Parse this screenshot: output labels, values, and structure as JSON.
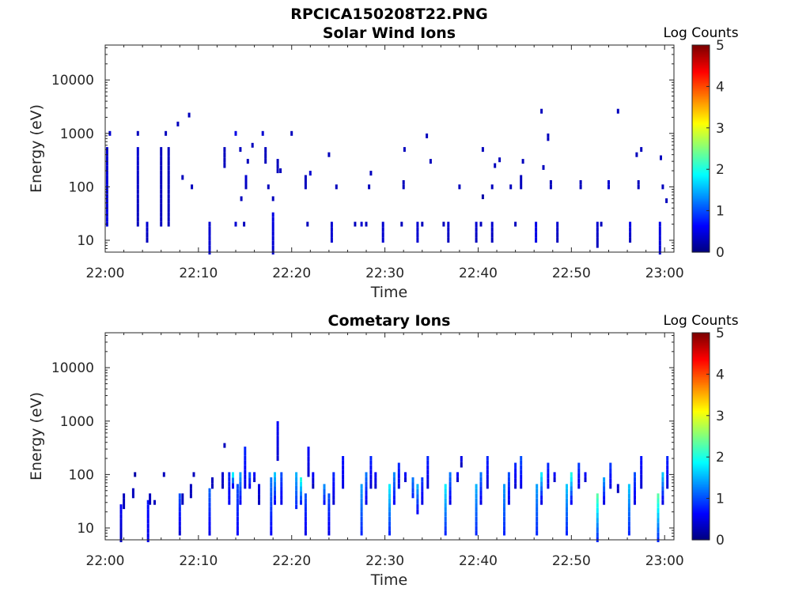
{
  "figure": {
    "filename": "RPCICA150208T22.PNG"
  },
  "chart_data": [
    {
      "type": "heatmap",
      "title": "Solar Wind Ions",
      "xlabel": "Time",
      "ylabel": "Energy (eV)",
      "xticks": [
        "22:00",
        "22:10",
        "22:20",
        "22:30",
        "22:40",
        "22:50",
        "23:00"
      ],
      "xlim_minutes": [
        0,
        61
      ],
      "yscale": "log",
      "ylim": [
        6,
        45000
      ],
      "yticks": [
        10,
        100,
        1000,
        10000
      ],
      "ytick_labels": [
        "10",
        "100",
        "1000",
        "10000"
      ],
      "grid": false,
      "colorbar": {
        "label": "Log Counts",
        "range": [
          0,
          5
        ],
        "ticks": [
          "0",
          "1",
          "2",
          "3",
          "4",
          "5"
        ],
        "colormap": "jet"
      },
      "cells": [
        [
          0.2,
          20,
          0.5,
          500,
          0.4
        ],
        [
          0.5,
          1000,
          0.4,
          1000,
          0.3
        ],
        [
          3.5,
          20,
          0.3,
          500,
          0.4
        ],
        [
          3.5,
          1000,
          0.3,
          1000,
          0.3
        ],
        [
          4.5,
          10,
          0.3,
          20,
          0.4
        ],
        [
          6.0,
          20,
          0.3,
          500,
          0.3
        ],
        [
          6.5,
          1000,
          0.3,
          1000,
          0.3
        ],
        [
          6.8,
          20,
          0.3,
          500,
          0.3
        ],
        [
          7.8,
          1500,
          0.3,
          1500,
          0.2
        ],
        [
          8.3,
          150,
          0.3,
          150,
          0.2
        ],
        [
          9.0,
          2200,
          0.3,
          2200,
          0.2
        ],
        [
          9.3,
          100,
          0.3,
          100,
          0.2
        ],
        [
          11.2,
          6,
          0.4,
          20,
          0.4
        ],
        [
          12.8,
          250,
          0.3,
          500,
          0.3
        ],
        [
          14.0,
          1000,
          0.5,
          1000,
          0.3
        ],
        [
          14.0,
          20,
          0.4,
          20,
          0.4
        ],
        [
          14.5,
          500,
          0.3,
          500,
          0.3
        ],
        [
          14.6,
          60,
          0.3,
          60,
          0.3
        ],
        [
          14.9,
          20,
          0.3,
          20,
          0.3
        ],
        [
          15.1,
          100,
          0.3,
          150,
          0.4
        ],
        [
          15.3,
          300,
          0.3,
          300,
          0.3
        ],
        [
          15.8,
          600,
          0.3,
          600,
          0.3
        ],
        [
          16.9,
          1000,
          0.4,
          1000,
          0.3
        ],
        [
          17.2,
          300,
          0.3,
          500,
          0.3
        ],
        [
          17.5,
          100,
          0.3,
          100,
          0.3
        ],
        [
          18.0,
          6,
          0.4,
          30,
          0.5
        ],
        [
          18.0,
          60,
          0.3,
          60,
          0.2
        ],
        [
          18.5,
          200,
          0.3,
          300,
          0.3
        ],
        [
          18.8,
          200,
          0.3,
          200,
          0.3
        ],
        [
          20.0,
          1000,
          0.3,
          1000,
          0.3
        ],
        [
          21.5,
          100,
          0.3,
          150,
          0.3
        ],
        [
          21.7,
          20,
          0.3,
          20,
          0.4
        ],
        [
          22.0,
          180,
          0.4,
          180,
          0.4
        ],
        [
          24.0,
          400,
          0.3,
          400,
          0.3
        ],
        [
          24.3,
          10,
          0.4,
          20,
          0.4
        ],
        [
          24.8,
          100,
          0.3,
          100,
          0.3
        ],
        [
          26.8,
          20,
          0.3,
          20,
          0.4
        ],
        [
          27.5,
          20,
          0.4,
          20,
          0.4
        ],
        [
          28.0,
          20,
          0.3,
          20,
          0.3
        ],
        [
          28.3,
          100,
          0.3,
          100,
          0.3
        ],
        [
          28.5,
          180,
          0.3,
          180,
          0.3
        ],
        [
          29.8,
          10,
          0.4,
          20,
          0.4
        ],
        [
          31.8,
          20,
          0.3,
          20,
          0.3
        ],
        [
          32.0,
          100,
          0.3,
          120,
          0.3
        ],
        [
          32.1,
          500,
          0.3,
          500,
          0.3
        ],
        [
          33.5,
          10,
          0.4,
          20,
          0.4
        ],
        [
          34.0,
          20,
          0.3,
          20,
          0.4
        ],
        [
          34.5,
          900,
          0.3,
          900,
          0.3
        ],
        [
          34.9,
          300,
          0.3,
          300,
          0.3
        ],
        [
          36.3,
          20,
          0.3,
          20,
          0.4
        ],
        [
          36.8,
          10,
          0.3,
          20,
          0.4
        ],
        [
          38.0,
          100,
          0.3,
          100,
          0.3
        ],
        [
          39.8,
          10,
          0.3,
          20,
          0.4
        ],
        [
          40.3,
          20,
          0.3,
          20,
          0.4
        ],
        [
          40.5,
          500,
          0.3,
          500,
          0.3
        ],
        [
          40.5,
          65,
          0.2,
          65,
          0.2
        ],
        [
          41.5,
          10,
          0.3,
          20,
          0.4
        ],
        [
          41.5,
          100,
          0.3,
          100,
          0.3
        ],
        [
          41.8,
          250,
          0.3,
          250,
          0.3
        ],
        [
          42.3,
          320,
          0.3,
          320,
          0.3
        ],
        [
          43.5,
          100,
          0.3,
          100,
          0.3
        ],
        [
          44.0,
          20,
          0.3,
          20,
          0.4
        ],
        [
          44.6,
          100,
          0.3,
          150,
          0.3
        ],
        [
          44.8,
          300,
          0.3,
          300,
          0.3
        ],
        [
          46.2,
          10,
          0.5,
          20,
          0.5
        ],
        [
          46.8,
          2600,
          0.3,
          2600,
          0.2
        ],
        [
          47.0,
          230,
          0.3,
          230,
          0.3
        ],
        [
          47.5,
          800,
          0.3,
          900,
          0.3
        ],
        [
          47.8,
          100,
          0.3,
          120,
          0.3
        ],
        [
          48.5,
          10,
          0.3,
          20,
          0.4
        ],
        [
          51.0,
          100,
          0.3,
          120,
          0.3
        ],
        [
          52.8,
          8,
          0.3,
          20,
          0.4
        ],
        [
          53.2,
          20,
          0.3,
          20,
          0.4
        ],
        [
          54.0,
          100,
          0.4,
          120,
          0.4
        ],
        [
          55.0,
          2600,
          0.3,
          2600,
          0.2
        ],
        [
          56.3,
          10,
          0.3,
          20,
          0.5
        ],
        [
          57.0,
          400,
          0.3,
          400,
          0.3
        ],
        [
          57.2,
          100,
          0.3,
          120,
          0.3
        ],
        [
          57.5,
          500,
          0.3,
          500,
          0.3
        ],
        [
          59.5,
          6,
          0.4,
          20,
          0.5
        ],
        [
          59.6,
          350,
          0.3,
          350,
          0.3
        ],
        [
          59.8,
          100,
          0.3,
          100,
          0.3
        ],
        [
          60.2,
          55,
          0.3,
          55,
          0.3
        ]
      ]
    },
    {
      "type": "heatmap",
      "title": "Cometary Ions",
      "xlabel": "Time",
      "ylabel": "Energy (eV)",
      "xticks": [
        "22:00",
        "22:10",
        "22:20",
        "22:30",
        "22:40",
        "22:50",
        "23:00"
      ],
      "xlim_minutes": [
        0,
        61
      ],
      "yscale": "log",
      "ylim": [
        6,
        45000
      ],
      "yticks": [
        10,
        100,
        1000,
        10000
      ],
      "ytick_labels": [
        "10",
        "100",
        "1000",
        "10000"
      ],
      "grid": false,
      "colorbar": {
        "label": "Log Counts",
        "range": [
          0,
          5
        ],
        "ticks": [
          "0",
          "1",
          "2",
          "3",
          "4",
          "5"
        ],
        "colormap": "jet"
      },
      "cells": [
        [
          1.7,
          6,
          0.3,
          25,
          0.6
        ],
        [
          2.0,
          25,
          0.3,
          40,
          0.3
        ],
        [
          3.0,
          40,
          0.3,
          50,
          0.3
        ],
        [
          3.2,
          100,
          0.2,
          100,
          0.2
        ],
        [
          4.6,
          6,
          0.5,
          30,
          0.7
        ],
        [
          4.8,
          30,
          0.3,
          40,
          0.3
        ],
        [
          5.3,
          30,
          0.3,
          30,
          0.3
        ],
        [
          6.3,
          100,
          0.3,
          100,
          0.3
        ],
        [
          8.0,
          8,
          0.4,
          40,
          1.0
        ],
        [
          8.3,
          30,
          0.3,
          40,
          0.3
        ],
        [
          9.2,
          40,
          0.3,
          60,
          0.3
        ],
        [
          9.5,
          100,
          0.3,
          100,
          0.3
        ],
        [
          11.2,
          8,
          0.5,
          50,
          1.1
        ],
        [
          11.5,
          60,
          0.3,
          80,
          0.3
        ],
        [
          12.6,
          60,
          0.3,
          100,
          0.4
        ],
        [
          12.8,
          350,
          0.3,
          350,
          0.3
        ],
        [
          13.3,
          30,
          0.6,
          100,
          0.8
        ],
        [
          13.7,
          60,
          0.6,
          100,
          1.8
        ],
        [
          14.2,
          8,
          0.6,
          60,
          1.0
        ],
        [
          14.5,
          30,
          0.6,
          100,
          1.4
        ],
        [
          15.0,
          60,
          0.5,
          300,
          0.8
        ],
        [
          15.5,
          60,
          0.6,
          100,
          1.0
        ],
        [
          16.0,
          80,
          0.4,
          100,
          0.6
        ],
        [
          16.5,
          30,
          0.3,
          60,
          0.5
        ],
        [
          17.8,
          8,
          0.6,
          80,
          1.2
        ],
        [
          18.2,
          30,
          0.6,
          100,
          1.6
        ],
        [
          18.5,
          200,
          0.4,
          900,
          0.6
        ],
        [
          18.9,
          30,
          0.5,
          100,
          1.0
        ],
        [
          20.5,
          25,
          0.8,
          100,
          1.5
        ],
        [
          21.0,
          30,
          0.8,
          80,
          2.0
        ],
        [
          21.5,
          8,
          0.5,
          40,
          1.0
        ],
        [
          21.8,
          100,
          0.4,
          300,
          0.6
        ],
        [
          22.3,
          60,
          0.3,
          100,
          0.6
        ],
        [
          23.5,
          30,
          0.7,
          60,
          1.3
        ],
        [
          24.0,
          8,
          0.5,
          40,
          1.0
        ],
        [
          24.5,
          30,
          0.4,
          100,
          0.8
        ],
        [
          25.5,
          60,
          0.5,
          200,
          0.7
        ],
        [
          27.5,
          8,
          0.8,
          60,
          1.4
        ],
        [
          28.0,
          30,
          0.5,
          100,
          1.2
        ],
        [
          28.5,
          60,
          0.4,
          200,
          0.8
        ],
        [
          29.0,
          60,
          0.4,
          100,
          0.6
        ],
        [
          30.5,
          8,
          0.8,
          60,
          1.8
        ],
        [
          31.0,
          30,
          0.6,
          100,
          1.3
        ],
        [
          31.5,
          60,
          0.5,
          150,
          0.8
        ],
        [
          32.2,
          80,
          0.4,
          100,
          0.6
        ],
        [
          33.0,
          40,
          0.8,
          80,
          1.2
        ],
        [
          33.5,
          20,
          0.6,
          60,
          1.5
        ],
        [
          34.0,
          30,
          0.5,
          80,
          0.9
        ],
        [
          34.6,
          60,
          0.4,
          200,
          0.8
        ],
        [
          36.5,
          8,
          0.8,
          60,
          1.8
        ],
        [
          37.0,
          30,
          0.5,
          100,
          1.2
        ],
        [
          37.8,
          80,
          0.4,
          100,
          0.6
        ],
        [
          38.2,
          150,
          0.3,
          200,
          0.5
        ],
        [
          39.8,
          8,
          0.8,
          60,
          1.5
        ],
        [
          40.3,
          30,
          0.5,
          100,
          1.2
        ],
        [
          41.0,
          60,
          0.4,
          200,
          0.8
        ],
        [
          42.8,
          8,
          0.8,
          60,
          1.4
        ],
        [
          43.3,
          30,
          0.5,
          100,
          1.0
        ],
        [
          44.0,
          60,
          0.4,
          150,
          0.8
        ],
        [
          44.6,
          60,
          0.5,
          200,
          1.0
        ],
        [
          46.3,
          8,
          0.8,
          60,
          1.4
        ],
        [
          46.8,
          30,
          0.5,
          100,
          1.8
        ],
        [
          47.5,
          60,
          0.5,
          150,
          0.8
        ],
        [
          48.2,
          80,
          0.4,
          100,
          0.6
        ],
        [
          49.5,
          8,
          0.8,
          60,
          1.6
        ],
        [
          50.0,
          30,
          0.6,
          100,
          2.0
        ],
        [
          50.8,
          60,
          0.5,
          150,
          0.9
        ],
        [
          51.5,
          80,
          0.4,
          100,
          0.6
        ],
        [
          52.8,
          6,
          0.8,
          40,
          2.3
        ],
        [
          53.5,
          30,
          0.5,
          80,
          1.4
        ],
        [
          54.2,
          60,
          0.5,
          150,
          0.9
        ],
        [
          55.0,
          50,
          0.3,
          60,
          0.4
        ],
        [
          56.2,
          8,
          0.8,
          60,
          1.6
        ],
        [
          56.8,
          30,
          0.5,
          100,
          1.0
        ],
        [
          57.5,
          60,
          0.4,
          200,
          0.7
        ],
        [
          59.3,
          6,
          0.8,
          40,
          2.3
        ],
        [
          59.8,
          30,
          0.5,
          100,
          1.6
        ],
        [
          60.3,
          60,
          0.4,
          200,
          0.8
        ]
      ]
    }
  ]
}
